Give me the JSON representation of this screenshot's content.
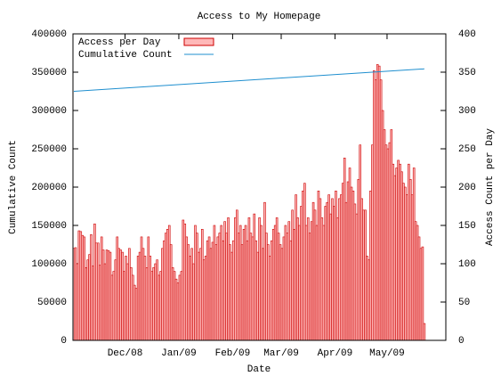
{
  "chart_data": {
    "type": "bar",
    "title": "Access to My Homepage",
    "xlabel": "Date",
    "ylabel": "Cumulative Count",
    "y2label": "Access Count per Day",
    "legend": "top-left",
    "categories": [
      null,
      null,
      null,
      null,
      null,
      null,
      null,
      null,
      null,
      null,
      null,
      null,
      null,
      null,
      null,
      null,
      null,
      null,
      null,
      null,
      null,
      null,
      null,
      null,
      null,
      null,
      null,
      null,
      null,
      null,
      "Dec/08",
      null,
      null,
      null,
      null,
      null,
      null,
      null,
      null,
      null,
      null,
      null,
      null,
      null,
      null,
      null,
      null,
      null,
      null,
      null,
      null,
      null,
      null,
      null,
      null,
      null,
      null,
      null,
      null,
      null,
      null,
      "Jan/09",
      null,
      null,
      null,
      null,
      null,
      null,
      null,
      null,
      null,
      null,
      null,
      null,
      null,
      null,
      null,
      null,
      null,
      null,
      null,
      null,
      null,
      null,
      null,
      null,
      null,
      null,
      null,
      null,
      null,
      null,
      "Feb/09",
      null,
      null,
      null,
      null,
      null,
      null,
      null,
      null,
      null,
      null,
      null,
      null,
      null,
      null,
      null,
      null,
      null,
      null,
      null,
      null,
      null,
      null,
      null,
      null,
      null,
      null,
      null,
      "Mar/09",
      null,
      null,
      null,
      null,
      null,
      null,
      null,
      null,
      null,
      null,
      null,
      null,
      null,
      null,
      null,
      null,
      null,
      null,
      null,
      null,
      null,
      null,
      null,
      null,
      null,
      null,
      null,
      null,
      null,
      null,
      "Apr/09",
      null,
      null,
      null,
      null,
      null,
      null,
      null,
      null,
      null,
      null,
      null,
      null,
      null,
      null,
      null,
      null,
      null,
      null,
      null,
      null,
      null,
      null,
      null,
      null,
      null,
      null,
      null,
      null,
      null,
      "May/09",
      null,
      null,
      null,
      null,
      null,
      null,
      null,
      null,
      null,
      null,
      null,
      null,
      null,
      null,
      null,
      null,
      null,
      null,
      null,
      null,
      null
    ],
    "series": [
      {
        "name": "Access per Day",
        "type": "bar",
        "axis": "y2",
        "color": "#cc0000",
        "fill": "#ffb8b8",
        "values": [
          120,
          121,
          100,
          143,
          142,
          137,
          135,
          95,
          105,
          112,
          138,
          97,
          152,
          127,
          127,
          98,
          135,
          118,
          100,
          118,
          117,
          115,
          85,
          90,
          105,
          135,
          120,
          118,
          115,
          90,
          110,
          100,
          120,
          95,
          85,
          72,
          68,
          110,
          115,
          135,
          120,
          110,
          95,
          135,
          110,
          90,
          95,
          100,
          105,
          85,
          90,
          120,
          130,
          140,
          145,
          150,
          125,
          95,
          90,
          80,
          75,
          85,
          90,
          157,
          152,
          135,
          125,
          110,
          120,
          100,
          150,
          140,
          115,
          120,
          145,
          105,
          110,
          130,
          135,
          120,
          128,
          150,
          125,
          135,
          140,
          150,
          130,
          155,
          140,
          160,
          125,
          115,
          130,
          160,
          170,
          140,
          150,
          125,
          145,
          150,
          130,
          160,
          140,
          135,
          165,
          130,
          115,
          160,
          150,
          120,
          180,
          140,
          125,
          110,
          130,
          145,
          150,
          160,
          140,
          125,
          120,
          135,
          150,
          140,
          155,
          130,
          170,
          145,
          190,
          160,
          150,
          175,
          195,
          205,
          150,
          160,
          140,
          155,
          180,
          170,
          150,
          195,
          185,
          160,
          150,
          175,
          180,
          190,
          165,
          185,
          175,
          195,
          160,
          185,
          190,
          205,
          238,
          180,
          207,
          225,
          200,
          195,
          178,
          165,
          210,
          255,
          185,
          170,
          170,
          110,
          105,
          195,
          255,
          352,
          340,
          360,
          358,
          340,
          300,
          275,
          255,
          250,
          258,
          275,
          230,
          215,
          225,
          235,
          230,
          220,
          205,
          200,
          190,
          230,
          210,
          190,
          225,
          155,
          150,
          135,
          120,
          122,
          22
        ]
      },
      {
        "name": "Cumulative Count",
        "type": "line",
        "color": "#1f8fcf",
        "values": [
          325000,
          325145,
          325290,
          325435,
          325580,
          325725,
          325870,
          326015,
          326160,
          326305,
          326450,
          326595,
          326740,
          326885,
          327030,
          327175,
          327320,
          327465,
          327610,
          327755,
          327900,
          328045,
          328190,
          328335,
          328480,
          328625,
          328770,
          328915,
          329060,
          329205,
          329350,
          329495,
          329640,
          329785,
          329930,
          330075,
          330220,
          330365,
          330510,
          330655,
          330800,
          330945,
          331090,
          331235,
          331380,
          331525,
          331670,
          331815,
          331960,
          332105,
          332250,
          332395,
          332540,
          332685,
          332830,
          332975,
          333120,
          333265,
          333410,
          333555,
          333700,
          333845,
          333990,
          334135,
          334280,
          334425,
          334570,
          334715,
          334860,
          335005,
          335150,
          335295,
          335440,
          335585,
          335730,
          335875,
          336020,
          336165,
          336310,
          336455,
          336600,
          336745,
          336890,
          337035,
          337180,
          337325,
          337470,
          337615,
          337760,
          337905,
          338050,
          338195,
          338340,
          338485,
          338630,
          338775,
          338920,
          339065,
          339210,
          339355,
          339500,
          339645,
          339790,
          339935,
          340080,
          340225,
          340370,
          340515,
          340660,
          340805,
          340950,
          341095,
          341240,
          341385,
          341530,
          341675,
          341820,
          341965,
          342110,
          342255,
          342400,
          342545,
          342690,
          342835,
          342980,
          343125,
          343270,
          343415,
          343560,
          343705,
          343850,
          343995,
          344140,
          344285,
          344430,
          344575,
          344720,
          344865,
          345010,
          345155,
          345300,
          345445,
          345590,
          345735,
          345880,
          346025,
          346170,
          346315,
          346460,
          346605,
          346750,
          346895,
          347040,
          347185,
          347330,
          347475,
          347620,
          347765,
          347910,
          348055,
          348200,
          348345,
          348490,
          348635,
          348780,
          348925,
          349070,
          349215,
          349360,
          349505,
          349650,
          349795,
          349940,
          350085,
          350230,
          350375,
          350520,
          350665,
          350810,
          350955,
          351100,
          351245,
          351390,
          351535,
          351680,
          351825,
          351970,
          352115,
          352260,
          352405,
          352550,
          352695,
          352840,
          352985,
          353130,
          353275,
          353420,
          353565,
          353710,
          353855,
          354000,
          354145,
          354290
        ]
      }
    ],
    "ylim": [
      0,
      400000
    ],
    "yticks": [
      0,
      50000,
      100000,
      150000,
      200000,
      250000,
      300000,
      350000,
      400000
    ],
    "y2lim": [
      0,
      400
    ],
    "y2ticks": [
      0,
      50,
      100,
      150,
      200,
      250,
      300,
      350,
      400
    ]
  }
}
